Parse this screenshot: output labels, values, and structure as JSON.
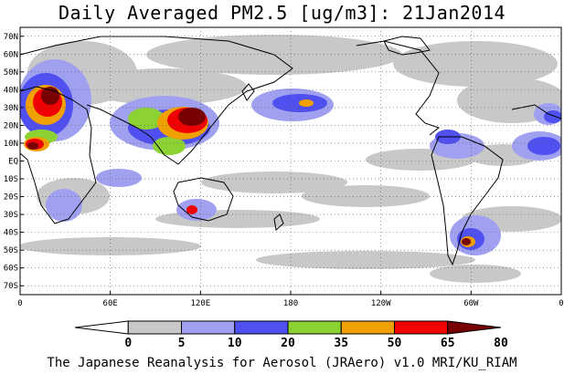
{
  "title": "Daily Averaged PM2.5 [ug/m3]: 21Jan2014",
  "credit": "The Japanese Reanalysis for Aerosol (JRAero) v1.0 MRI/KU_RIAM",
  "map": {
    "projection": "equirectangular",
    "lon_range": [
      0,
      360
    ],
    "lat_range": [
      -75,
      75
    ],
    "grid": "dotted",
    "lat_labels": [
      {
        "lat": 70,
        "text": "70N"
      },
      {
        "lat": 60,
        "text": "60N"
      },
      {
        "lat": 50,
        "text": "50N"
      },
      {
        "lat": 40,
        "text": "40N"
      },
      {
        "lat": 30,
        "text": "30N"
      },
      {
        "lat": 20,
        "text": "20N"
      },
      {
        "lat": 10,
        "text": "10N"
      },
      {
        "lat": 0,
        "text": "EQ"
      },
      {
        "lat": -10,
        "text": "10S"
      },
      {
        "lat": -20,
        "text": "20S"
      },
      {
        "lat": -30,
        "text": "30S"
      },
      {
        "lat": -40,
        "text": "40S"
      },
      {
        "lat": -50,
        "text": "50S"
      },
      {
        "lat": -60,
        "text": "60S"
      },
      {
        "lat": -70,
        "text": "70S"
      }
    ],
    "lon_labels": [
      {
        "lon": 0,
        "text": "0"
      },
      {
        "lon": 60,
        "text": "60E"
      },
      {
        "lon": 120,
        "text": "120E"
      },
      {
        "lon": 180,
        "text": "180"
      },
      {
        "lon": 240,
        "text": "120W"
      },
      {
        "lon": 300,
        "text": "60W"
      },
      {
        "lon": 360,
        "text": "0"
      }
    ]
  },
  "colorbar": {
    "levels": [
      "0",
      "5",
      "10",
      "20",
      "35",
      "50",
      "65",
      "80"
    ],
    "colors": [
      "#ffffff",
      "#c8c8c8",
      "#a0a0f0",
      "#5050f0",
      "#8cd232",
      "#f0a000",
      "#f00000",
      "#780000"
    ]
  },
  "colors": {
    "land_outline": "#000000",
    "background": "#ffffff"
  }
}
